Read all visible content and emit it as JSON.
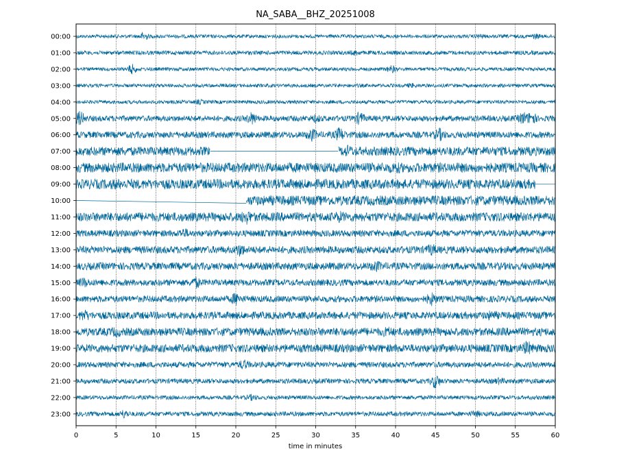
{
  "chart_data": {
    "type": "line",
    "title": "NA_SABA__BHZ_20251008",
    "xlabel": "time in minutes",
    "ylabel": "",
    "xlim": [
      0,
      60
    ],
    "x_ticks": [
      0,
      5,
      10,
      15,
      20,
      25,
      30,
      35,
      40,
      45,
      50,
      55,
      60
    ],
    "y_tick_labels": [
      "00:00",
      "01:00",
      "02:00",
      "03:00",
      "04:00",
      "05:00",
      "06:00",
      "07:00",
      "08:00",
      "09:00",
      "10:00",
      "11:00",
      "12:00",
      "13:00",
      "14:00",
      "15:00",
      "16:00",
      "17:00",
      "18:00",
      "19:00",
      "20:00",
      "21:00",
      "22:00",
      "23:00"
    ],
    "grid": {
      "x": "dotted vertical lines at each 5 minutes",
      "y": false
    },
    "trace_color": "#006699",
    "series": [
      {
        "hour": "00:00",
        "amplitude": 0.22,
        "events": [
          {
            "minute": 8.5,
            "amp": 0.6
          },
          {
            "minute": 50.5,
            "amp": 0.35
          },
          {
            "minute": 57.5,
            "amp": 0.4
          }
        ]
      },
      {
        "hour": "01:00",
        "amplitude": 0.25,
        "events": [
          {
            "minute": 35,
            "amp": 0.4
          }
        ]
      },
      {
        "hour": "02:00",
        "amplitude": 0.22,
        "events": [
          {
            "minute": 7,
            "amp": 0.7
          },
          {
            "minute": 39.5,
            "amp": 0.55
          }
        ]
      },
      {
        "hour": "03:00",
        "amplitude": 0.22,
        "events": [
          {
            "minute": 42,
            "amp": 0.35
          }
        ]
      },
      {
        "hour": "04:00",
        "amplitude": 0.22,
        "events": [
          {
            "minute": 15.5,
            "amp": 0.35
          }
        ]
      },
      {
        "hour": "05:00",
        "amplitude": 0.35,
        "events": [
          {
            "minute": 0.5,
            "amp": 1.0
          },
          {
            "minute": 22,
            "amp": 0.9
          },
          {
            "minute": 30,
            "amp": 0.6
          },
          {
            "minute": 35.5,
            "amp": 0.9
          },
          {
            "minute": 56,
            "amp": 0.9
          },
          {
            "minute": 57,
            "amp": 1.0
          }
        ]
      },
      {
        "hour": "06:00",
        "amplitude": 0.4,
        "events": [
          {
            "minute": 29.5,
            "amp": 0.9
          },
          {
            "minute": 33,
            "amp": 1.0
          },
          {
            "minute": 45.5,
            "amp": 0.9
          }
        ]
      },
      {
        "hour": "07:00",
        "amplitude": 0.55,
        "events": [
          {
            "minute": 29.5,
            "amp": 0.8
          },
          {
            "minute": 34,
            "amp": 0.8
          }
        ],
        "gaps": [
          [
            16.8,
            32.8
          ]
        ]
      },
      {
        "hour": "08:00",
        "amplitude": 0.6,
        "events": [
          {
            "minute": 40,
            "amp": 0.8
          }
        ]
      },
      {
        "hour": "09:00",
        "amplitude": 0.6,
        "events": [
          {
            "minute": 5,
            "amp": 0.7
          }
        ],
        "gaps": [
          [
            57.5,
            60
          ]
        ]
      },
      {
        "hour": "10:00",
        "amplitude": 0.6,
        "events": [],
        "gaps": [
          [
            0,
            21.3
          ]
        ]
      },
      {
        "hour": "11:00",
        "amplitude": 0.55,
        "events": [
          {
            "minute": 21.3,
            "amp": 1.0
          },
          {
            "minute": 33,
            "amp": 0.8
          }
        ]
      },
      {
        "hour": "12:00",
        "amplitude": 0.4,
        "events": [
          {
            "minute": 13.5,
            "amp": 0.7
          }
        ]
      },
      {
        "hour": "13:00",
        "amplitude": 0.45,
        "events": [
          {
            "minute": 20.5,
            "amp": 0.9
          },
          {
            "minute": 44.5,
            "amp": 0.8
          }
        ]
      },
      {
        "hour": "14:00",
        "amplitude": 0.45,
        "events": [
          {
            "minute": 37.5,
            "amp": 0.8
          }
        ]
      },
      {
        "hour": "15:00",
        "amplitude": 0.4,
        "events": [
          {
            "minute": 1,
            "amp": 0.7
          },
          {
            "minute": 15,
            "amp": 0.8
          }
        ]
      },
      {
        "hour": "16:00",
        "amplitude": 0.4,
        "events": [
          {
            "minute": 20,
            "amp": 0.9
          },
          {
            "minute": 44.5,
            "amp": 0.9
          }
        ]
      },
      {
        "hour": "17:00",
        "amplitude": 0.45,
        "events": [
          {
            "minute": 1,
            "amp": 0.8
          },
          {
            "minute": 52,
            "amp": 0.7
          }
        ]
      },
      {
        "hour": "18:00",
        "amplitude": 0.5,
        "events": [
          {
            "minute": 5,
            "amp": 0.7
          },
          {
            "minute": 39,
            "amp": 0.7
          }
        ]
      },
      {
        "hour": "19:00",
        "amplitude": 0.5,
        "events": [
          {
            "minute": 56.5,
            "amp": 1.0
          }
        ]
      },
      {
        "hour": "20:00",
        "amplitude": 0.35,
        "events": [
          {
            "minute": 21,
            "amp": 0.7
          }
        ]
      },
      {
        "hour": "21:00",
        "amplitude": 0.3,
        "events": [
          {
            "minute": 45,
            "amp": 1.0
          },
          {
            "minute": 53,
            "amp": 0.5
          }
        ]
      },
      {
        "hour": "22:00",
        "amplitude": 0.25,
        "events": [
          {
            "minute": 22,
            "amp": 0.45
          }
        ]
      },
      {
        "hour": "23:00",
        "amplitude": 0.28,
        "events": [
          {
            "minute": 6,
            "amp": 0.6
          },
          {
            "minute": 50,
            "amp": 0.5
          }
        ]
      }
    ]
  }
}
